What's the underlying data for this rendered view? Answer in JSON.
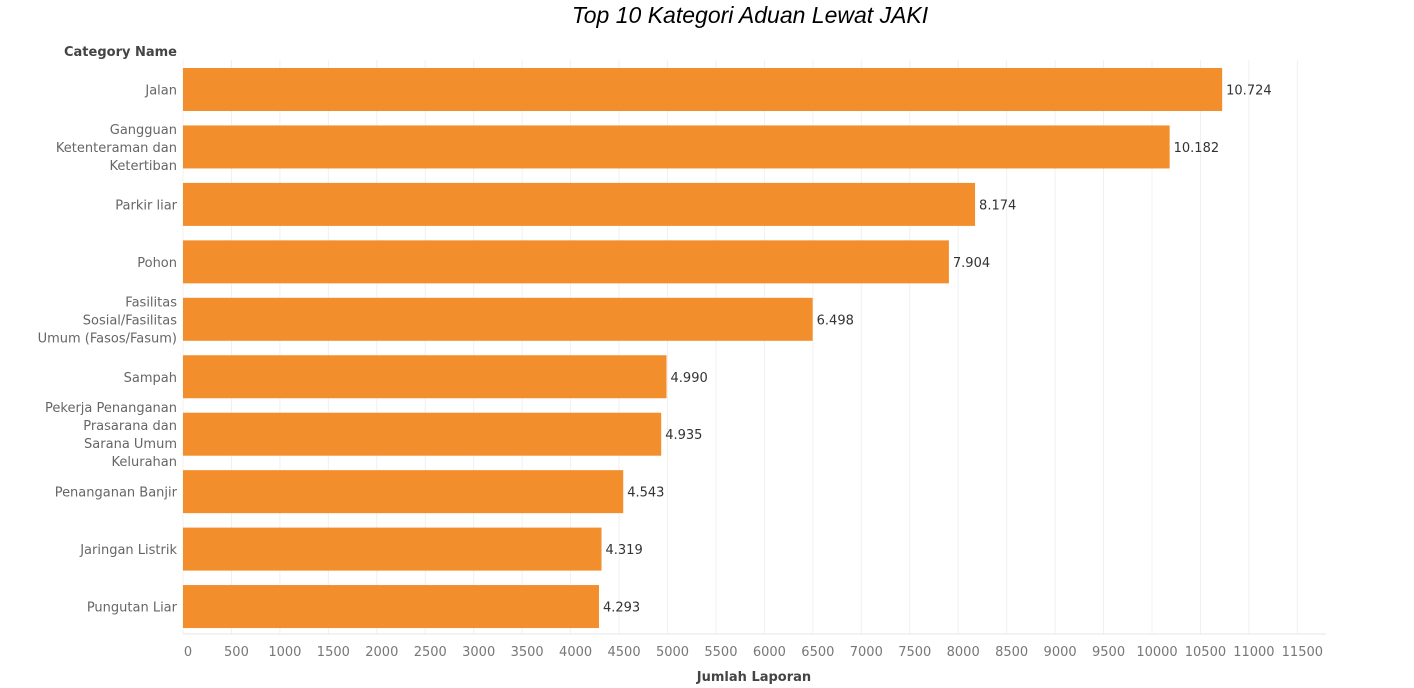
{
  "chart_data": {
    "type": "bar",
    "orientation": "horizontal",
    "title": "Top 10 Kategori Aduan Lewat JAKI",
    "ylabel": "Category Name",
    "xlabel": "Jumlah Laporan",
    "categories": [
      "Jalan",
      "Gangguan Ketenteraman dan Ketertiban",
      "Parkir liar",
      "Pohon",
      "Fasilitas Sosial/Fasilitas Umum (Fasos/Fasum)",
      "Sampah",
      "Pekerja Penanganan Prasarana dan Sarana Umum Kelurahan",
      "Penanganan Banjir",
      "Jaringan Listrik",
      "Pungutan Liar"
    ],
    "values": [
      10724,
      10182,
      8174,
      7904,
      6498,
      4990,
      4935,
      4543,
      4319,
      4293
    ],
    "value_labels": [
      "10.724",
      "10.182",
      "8.174",
      "7.904",
      "6.498",
      "4.990",
      "4.935",
      "4.543",
      "4.319",
      "4.293"
    ],
    "xlim": [
      0,
      11500
    ],
    "xticks": [
      0,
      500,
      1000,
      1500,
      2000,
      2500,
      3000,
      3500,
      4000,
      4500,
      5000,
      5500,
      6000,
      6500,
      7000,
      7500,
      8000,
      8500,
      9000,
      9500,
      10000,
      10500,
      11000,
      11500
    ],
    "grid": true,
    "bar_color": "#f28e2b"
  }
}
